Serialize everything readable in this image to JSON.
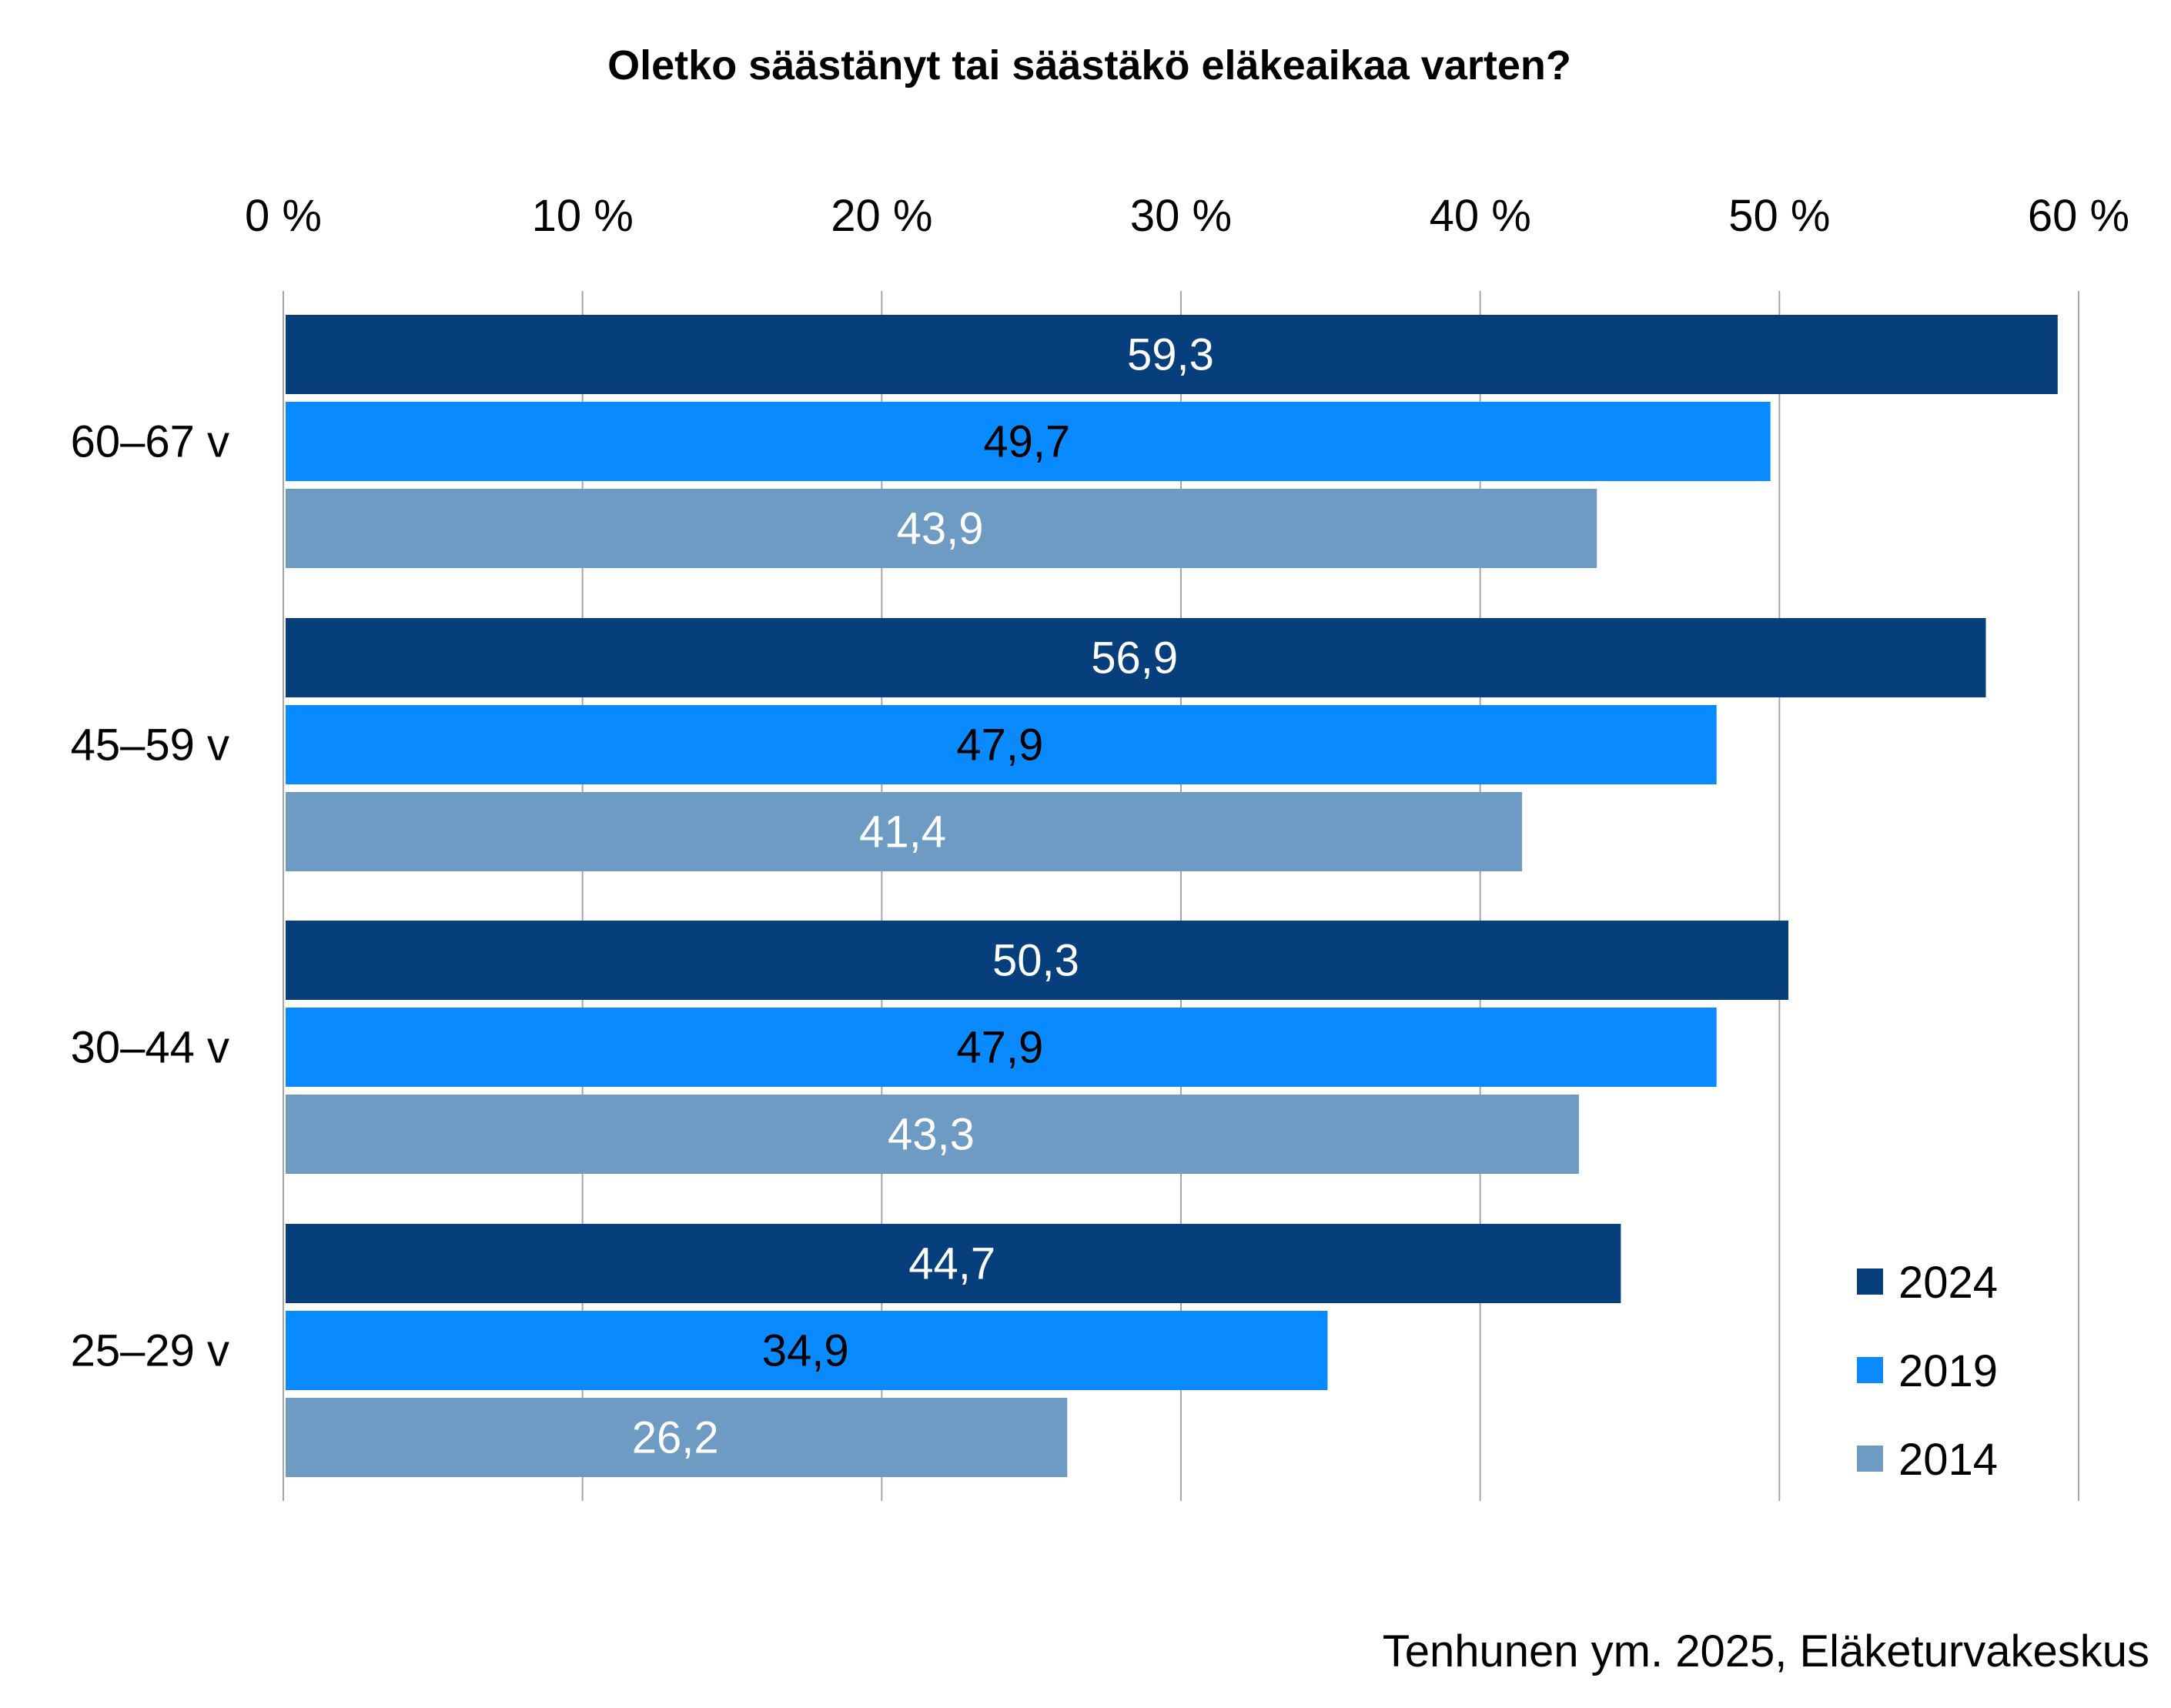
{
  "chart_data": {
    "type": "bar",
    "orientation": "horizontal",
    "title": "Oletko säästänyt tai säästäkö eläkeaikaa varten?",
    "categories": [
      "60–67 v",
      "45–59 v",
      "30–44 v",
      "25–29 v"
    ],
    "series": [
      {
        "name": "2024",
        "color": "#063F7C",
        "label_color": "#ffffff",
        "values": [
          59.3,
          56.9,
          50.3,
          44.7
        ],
        "labels": [
          "59,3",
          "56,9",
          "50,3",
          "44,7"
        ]
      },
      {
        "name": "2019",
        "color": "#0A8AFF",
        "label_color": "#000000",
        "values": [
          49.7,
          47.9,
          47.9,
          34.9
        ],
        "labels": [
          "49,7",
          "47,9",
          "47,9",
          "34,9"
        ]
      },
      {
        "name": "2014",
        "color": "#6E9BC4",
        "label_color": "#ffffff",
        "values": [
          43.9,
          41.4,
          43.3,
          26.2
        ],
        "labels": [
          "43,9",
          "41,4",
          "43,3",
          "26,2"
        ]
      }
    ],
    "xlim": [
      0,
      60
    ],
    "x_ticks": [
      0,
      10,
      20,
      30,
      40,
      50,
      60
    ],
    "x_tick_labels": [
      "0 %",
      "10 %",
      "20 %",
      "30 %",
      "40 %",
      "50 %",
      "60 %"
    ],
    "x_axis_position": "top",
    "grid": true,
    "legend_position": "bottom-right",
    "source": "Tenhunen ym. 2025, Eläketurvakeskus"
  }
}
